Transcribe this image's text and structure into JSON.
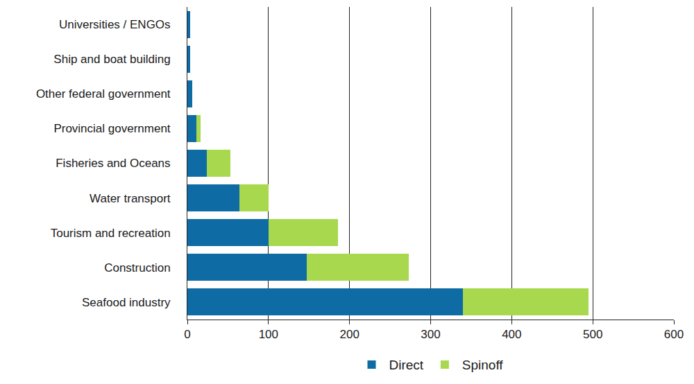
{
  "chart_data": {
    "type": "bar",
    "orientation": "horizontal",
    "stacked": true,
    "categories": [
      "Universities / ENGOs",
      "Ship and boat building",
      "Other federal government",
      "Provincial government",
      "Fisheries and Oceans",
      "Water transport",
      "Tourism and recreation",
      "Construction",
      "Seafood industry"
    ],
    "series": [
      {
        "name": "Direct",
        "color": "#0f6ba3",
        "values": [
          3,
          3,
          6,
          11,
          24,
          64,
          100,
          147,
          340
        ]
      },
      {
        "name": "Spinoff",
        "color": "#a8d84e",
        "values": [
          0,
          0,
          0,
          5,
          29,
          36,
          86,
          126,
          155
        ]
      }
    ],
    "xlim": [
      0,
      600
    ],
    "xticks": [
      0,
      100,
      200,
      300,
      400,
      500,
      600
    ],
    "grid": true,
    "legend": "bottom"
  }
}
